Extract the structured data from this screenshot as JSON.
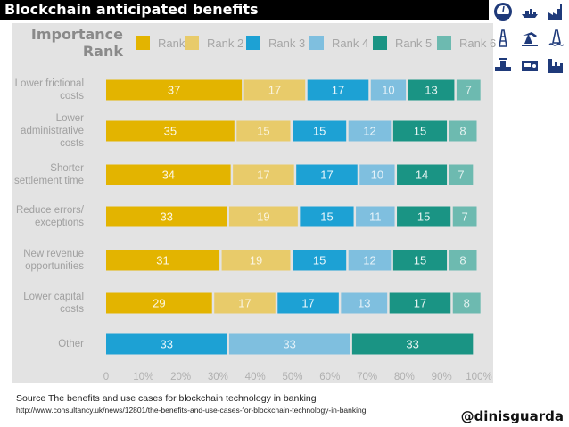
{
  "header": {
    "title": "Blockchain anticipated benefits"
  },
  "icons": [
    "gauge-icon",
    "ship-icon",
    "factory-icon",
    "drilling-rig-icon",
    "pumpjack-icon",
    "offshore-rig-icon",
    "pipeline-valve-icon",
    "tanker-truck-icon",
    "refinery-icon"
  ],
  "icon_color": "#1f3a7a",
  "chart_data": {
    "type": "bar",
    "orientation": "horizontal-stacked-percent",
    "legend_title": "Importance Rank",
    "legend_position": "top",
    "categories": [
      "Lower frictional\ncosts",
      "Lower\nadministrative\ncosts",
      "Shorter\nsettlement time",
      "Reduce errors/\nexceptions",
      "New revenue\nopportunities",
      "Lower capital\ncosts",
      "Other"
    ],
    "series": [
      {
        "name": "Rank 1",
        "color": "#e3b400",
        "values": [
          37,
          35,
          34,
          33,
          31,
          29,
          0
        ]
      },
      {
        "name": "Rank 2",
        "color": "#e8cb6a",
        "values": [
          17,
          15,
          17,
          19,
          19,
          17,
          0
        ]
      },
      {
        "name": "Rank 3",
        "color": "#1da1d4",
        "values": [
          17,
          15,
          17,
          15,
          15,
          17,
          33
        ]
      },
      {
        "name": "Rank 4",
        "color": "#7fbfdf",
        "values": [
          10,
          12,
          10,
          11,
          12,
          13,
          33
        ]
      },
      {
        "name": "Rank 5",
        "color": "#1a9484",
        "values": [
          13,
          15,
          14,
          15,
          15,
          17,
          33
        ]
      },
      {
        "name": "Rank 6",
        "color": "#6dbab0",
        "values": [
          7,
          8,
          7,
          7,
          8,
          8,
          0
        ]
      }
    ],
    "x_ticks": [
      "0",
      "10%",
      "20%",
      "30%",
      "40%",
      "50%",
      "60%",
      "70%",
      "80%",
      "90%",
      "100%"
    ],
    "xlim": [
      0,
      100
    ],
    "xlabel": "",
    "ylabel": "",
    "grid": false
  },
  "footer": {
    "source": "Source The benefits and use cases for blockchain technology in banking",
    "url": "http://www.consultancy.uk/news/12801/the-benefits-and-use-cases-for-blockchain-technology-in-banking",
    "handle": "@dinisguarda"
  }
}
